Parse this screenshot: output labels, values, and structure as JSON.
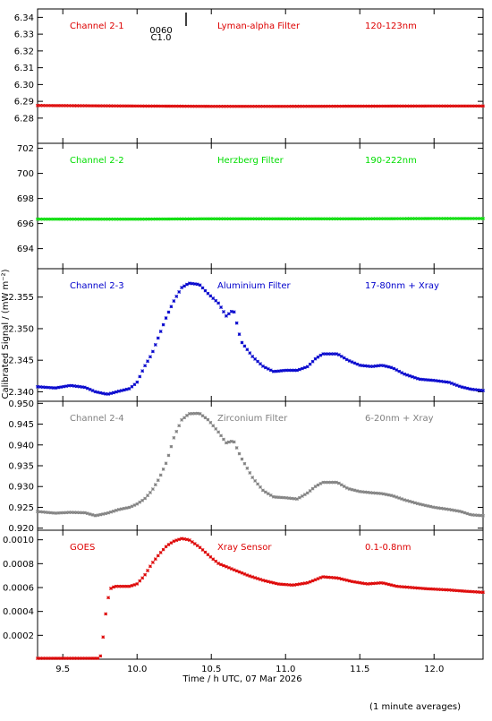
{
  "figure": {
    "xlabel": "Time / h UTC, 07 Mar 2026",
    "ylabel": "Calibrated Signal / (mW m⁻²)",
    "footnote": "(1 minute averages)",
    "x_range": [
      9.33,
      12.33
    ],
    "x_ticks": [
      9.5,
      10.0,
      10.5,
      11.0,
      11.5,
      12.0
    ],
    "x_tick_labels": [
      "9.5",
      "10.0",
      "10.5",
      "11.0",
      "11.5",
      "12.0"
    ],
    "annotation": {
      "text_top": "0060",
      "text_bottom": "C1.0",
      "x": 10.33
    }
  },
  "chart_data": [
    {
      "type": "scatter",
      "channel": "Channel 2-1",
      "filter": "Lyman-alpha Filter",
      "band": "120-123nm",
      "color": "#dd0000",
      "ylim": [
        6.265,
        6.345
      ],
      "y_ticks": [
        6.28,
        6.29,
        6.3,
        6.31,
        6.32,
        6.33,
        6.34
      ],
      "y_tick_labels": [
        "6.28",
        "6.29",
        "6.30",
        "6.31",
        "6.32",
        "6.33",
        "6.34"
      ],
      "curve": [
        [
          9.33,
          6.2875
        ],
        [
          10.0,
          6.2872
        ],
        [
          10.5,
          6.287
        ],
        [
          11.0,
          6.287
        ],
        [
          11.5,
          6.2871
        ],
        [
          12.0,
          6.2872
        ],
        [
          12.33,
          6.2872
        ]
      ]
    },
    {
      "type": "scatter",
      "channel": "Channel 2-2",
      "filter": "Herzberg Filter",
      "band": "190-222nm",
      "color": "#00dd00",
      "ylim": [
        692.4,
        702.4
      ],
      "y_ticks": [
        694,
        696,
        698,
        700,
        702
      ],
      "y_tick_labels": [
        "694",
        "696",
        "698",
        "700",
        "702"
      ],
      "curve": [
        [
          9.33,
          696.35
        ],
        [
          10.0,
          696.35
        ],
        [
          10.5,
          696.38
        ],
        [
          11.0,
          696.38
        ],
        [
          11.5,
          696.38
        ],
        [
          12.0,
          696.4
        ],
        [
          12.33,
          696.4
        ]
      ]
    },
    {
      "type": "scatter",
      "channel": "Channel 2-3",
      "filter": "Aluminium Filter",
      "band": "17-80nm + Xray",
      "color": "#0000cc",
      "ylim": [
        2.3385,
        2.3595
      ],
      "y_ticks": [
        2.34,
        2.345,
        2.35,
        2.355
      ],
      "y_tick_labels": [
        "2.340",
        "2.345",
        "2.350",
        "2.355"
      ],
      "curve": [
        [
          9.33,
          2.3408
        ],
        [
          9.45,
          2.3406
        ],
        [
          9.55,
          2.341
        ],
        [
          9.65,
          2.3407
        ],
        [
          9.72,
          2.34
        ],
        [
          9.8,
          2.3396
        ],
        [
          9.88,
          2.3401
        ],
        [
          9.95,
          2.3405
        ],
        [
          10.0,
          2.3415
        ],
        [
          10.05,
          2.344
        ],
        [
          10.1,
          2.346
        ],
        [
          10.15,
          2.349
        ],
        [
          10.2,
          2.352
        ],
        [
          10.25,
          2.3545
        ],
        [
          10.3,
          2.3565
        ],
        [
          10.35,
          2.3572
        ],
        [
          10.42,
          2.357
        ],
        [
          10.48,
          2.3555
        ],
        [
          10.55,
          2.354
        ],
        [
          10.6,
          2.352
        ],
        [
          10.65,
          2.353
        ],
        [
          10.7,
          2.348
        ],
        [
          10.78,
          2.3455
        ],
        [
          10.85,
          2.344
        ],
        [
          10.92,
          2.3432
        ],
        [
          11.0,
          2.3434
        ],
        [
          11.08,
          2.3434
        ],
        [
          11.15,
          2.344
        ],
        [
          11.2,
          2.3452
        ],
        [
          11.25,
          2.346
        ],
        [
          11.35,
          2.346
        ],
        [
          11.42,
          2.345
        ],
        [
          11.5,
          2.3442
        ],
        [
          11.58,
          2.344
        ],
        [
          11.65,
          2.3442
        ],
        [
          11.72,
          2.3438
        ],
        [
          11.8,
          2.3428
        ],
        [
          11.9,
          2.342
        ],
        [
          12.0,
          2.3418
        ],
        [
          12.1,
          2.3415
        ],
        [
          12.18,
          2.3408
        ],
        [
          12.25,
          2.3404
        ],
        [
          12.33,
          2.3402
        ]
      ]
    },
    {
      "type": "scatter",
      "channel": "Channel 2-4",
      "filter": "Zirconium Filter",
      "band": "6-20nm + Xray",
      "color": "#808080",
      "ylim": [
        0.9195,
        0.9505
      ],
      "y_ticks": [
        0.92,
        0.925,
        0.93,
        0.935,
        0.94,
        0.945,
        0.95
      ],
      "y_tick_labels": [
        "0.920",
        "0.925",
        "0.930",
        "0.935",
        "0.940",
        "0.945",
        "0.950"
      ],
      "curve": [
        [
          9.33,
          0.924
        ],
        [
          9.45,
          0.9236
        ],
        [
          9.55,
          0.9238
        ],
        [
          9.65,
          0.9237
        ],
        [
          9.72,
          0.923
        ],
        [
          9.8,
          0.9236
        ],
        [
          9.88,
          0.9245
        ],
        [
          9.95,
          0.925
        ],
        [
          10.0,
          0.9258
        ],
        [
          10.05,
          0.927
        ],
        [
          10.1,
          0.929
        ],
        [
          10.15,
          0.932
        ],
        [
          10.2,
          0.936
        ],
        [
          10.25,
          0.942
        ],
        [
          10.3,
          0.946
        ],
        [
          10.35,
          0.9475
        ],
        [
          10.42,
          0.9476
        ],
        [
          10.48,
          0.946
        ],
        [
          10.55,
          0.943
        ],
        [
          10.6,
          0.9405
        ],
        [
          10.65,
          0.941
        ],
        [
          10.7,
          0.937
        ],
        [
          10.78,
          0.932
        ],
        [
          10.85,
          0.929
        ],
        [
          10.92,
          0.9275
        ],
        [
          11.0,
          0.9273
        ],
        [
          11.08,
          0.927
        ],
        [
          11.15,
          0.9285
        ],
        [
          11.2,
          0.93
        ],
        [
          11.25,
          0.931
        ],
        [
          11.35,
          0.931
        ],
        [
          11.42,
          0.9295
        ],
        [
          11.5,
          0.9288
        ],
        [
          11.58,
          0.9285
        ],
        [
          11.65,
          0.9283
        ],
        [
          11.72,
          0.9278
        ],
        [
          11.8,
          0.9268
        ],
        [
          11.9,
          0.9258
        ],
        [
          12.0,
          0.925
        ],
        [
          12.1,
          0.9245
        ],
        [
          12.18,
          0.924
        ],
        [
          12.25,
          0.9232
        ],
        [
          12.33,
          0.923
        ]
      ]
    },
    {
      "type": "scatter",
      "channel": "GOES",
      "filter": "Xray Sensor",
      "band": "0.1-0.8nm",
      "color": "#dd0000",
      "ylim": [
        0.0,
        0.00108
      ],
      "y_ticks": [
        0.0002,
        0.0004,
        0.0006,
        0.0008,
        0.001
      ],
      "y_tick_labels": [
        "0.0002",
        "0.0004",
        "0.0006",
        "0.0008",
        "0.0010"
      ],
      "curve": [
        [
          9.33,
          0.0
        ],
        [
          9.74,
          0.0
        ],
        [
          9.76,
          4e-05
        ],
        [
          9.78,
          0.0003
        ],
        [
          9.8,
          0.00048
        ],
        [
          9.82,
          0.00059
        ],
        [
          9.85,
          0.00061
        ],
        [
          9.95,
          0.00061
        ],
        [
          10.0,
          0.00063
        ],
        [
          10.05,
          0.0007
        ],
        [
          10.1,
          0.0008
        ],
        [
          10.15,
          0.00088
        ],
        [
          10.2,
          0.00095
        ],
        [
          10.25,
          0.00099
        ],
        [
          10.3,
          0.00101
        ],
        [
          10.35,
          0.001
        ],
        [
          10.42,
          0.00094
        ],
        [
          10.5,
          0.00085
        ],
        [
          10.55,
          0.0008
        ],
        [
          10.65,
          0.00075
        ],
        [
          10.75,
          0.0007
        ],
        [
          10.85,
          0.00066
        ],
        [
          10.95,
          0.00063
        ],
        [
          11.05,
          0.00062
        ],
        [
          11.15,
          0.00064
        ],
        [
          11.25,
          0.00069
        ],
        [
          11.35,
          0.00068
        ],
        [
          11.45,
          0.00065
        ],
        [
          11.55,
          0.00063
        ],
        [
          11.65,
          0.00064
        ],
        [
          11.75,
          0.00061
        ],
        [
          11.85,
          0.0006
        ],
        [
          11.95,
          0.00059
        ],
        [
          12.1,
          0.00058
        ],
        [
          12.2,
          0.00057
        ],
        [
          12.33,
          0.00056
        ]
      ]
    }
  ]
}
